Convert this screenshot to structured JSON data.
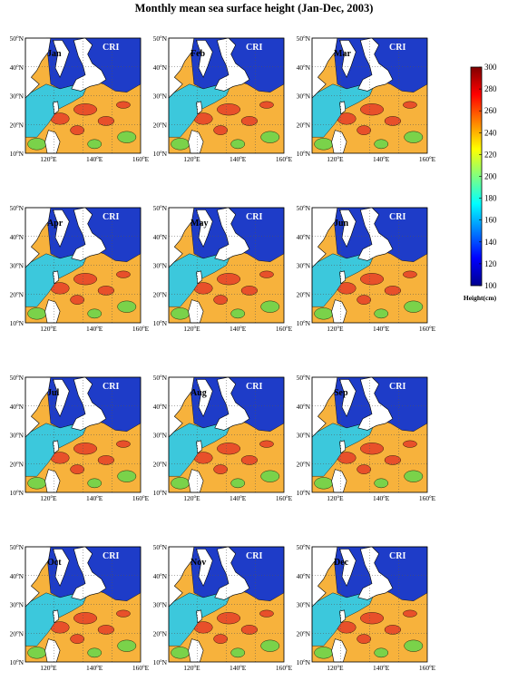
{
  "title": "Monthly mean sea surface height (Jan-Dec, 2003)",
  "region_label": "CRI",
  "panels": [
    {
      "month": "Jan"
    },
    {
      "month": "Feb"
    },
    {
      "month": "Mar"
    },
    {
      "month": "Apr"
    },
    {
      "month": "May"
    },
    {
      "month": "Jun"
    },
    {
      "month": "Jul"
    },
    {
      "month": "Aug"
    },
    {
      "month": "Sep"
    },
    {
      "month": "Oct"
    },
    {
      "month": "Nov"
    },
    {
      "month": "Dec"
    }
  ],
  "lat_ticks": [
    "10",
    "20",
    "30",
    "40",
    "50"
  ],
  "lat_suffix": "N",
  "lon_ticks": [
    "120",
    "140",
    "160"
  ],
  "lon_suffix": "E",
  "degree_mark": "o",
  "colorbar": {
    "label": "Height(cm)",
    "min": 100,
    "max": 300,
    "ticks": [
      "100",
      "120",
      "140",
      "160",
      "180",
      "200",
      "220",
      "240",
      "260",
      "280",
      "300"
    ],
    "colors": [
      "#00008f",
      "#0000ff",
      "#0080ff",
      "#00ffff",
      "#80ff80",
      "#ffff00",
      "#ff8000",
      "#ff0000",
      "#800000"
    ]
  },
  "colors": {
    "land": "#ffffff",
    "north_sea": "#1e3cc8",
    "coastal": "#3cc8dc",
    "warm": "#f7b23c",
    "hot": "#e8502a",
    "green": "#7ad24a"
  }
}
